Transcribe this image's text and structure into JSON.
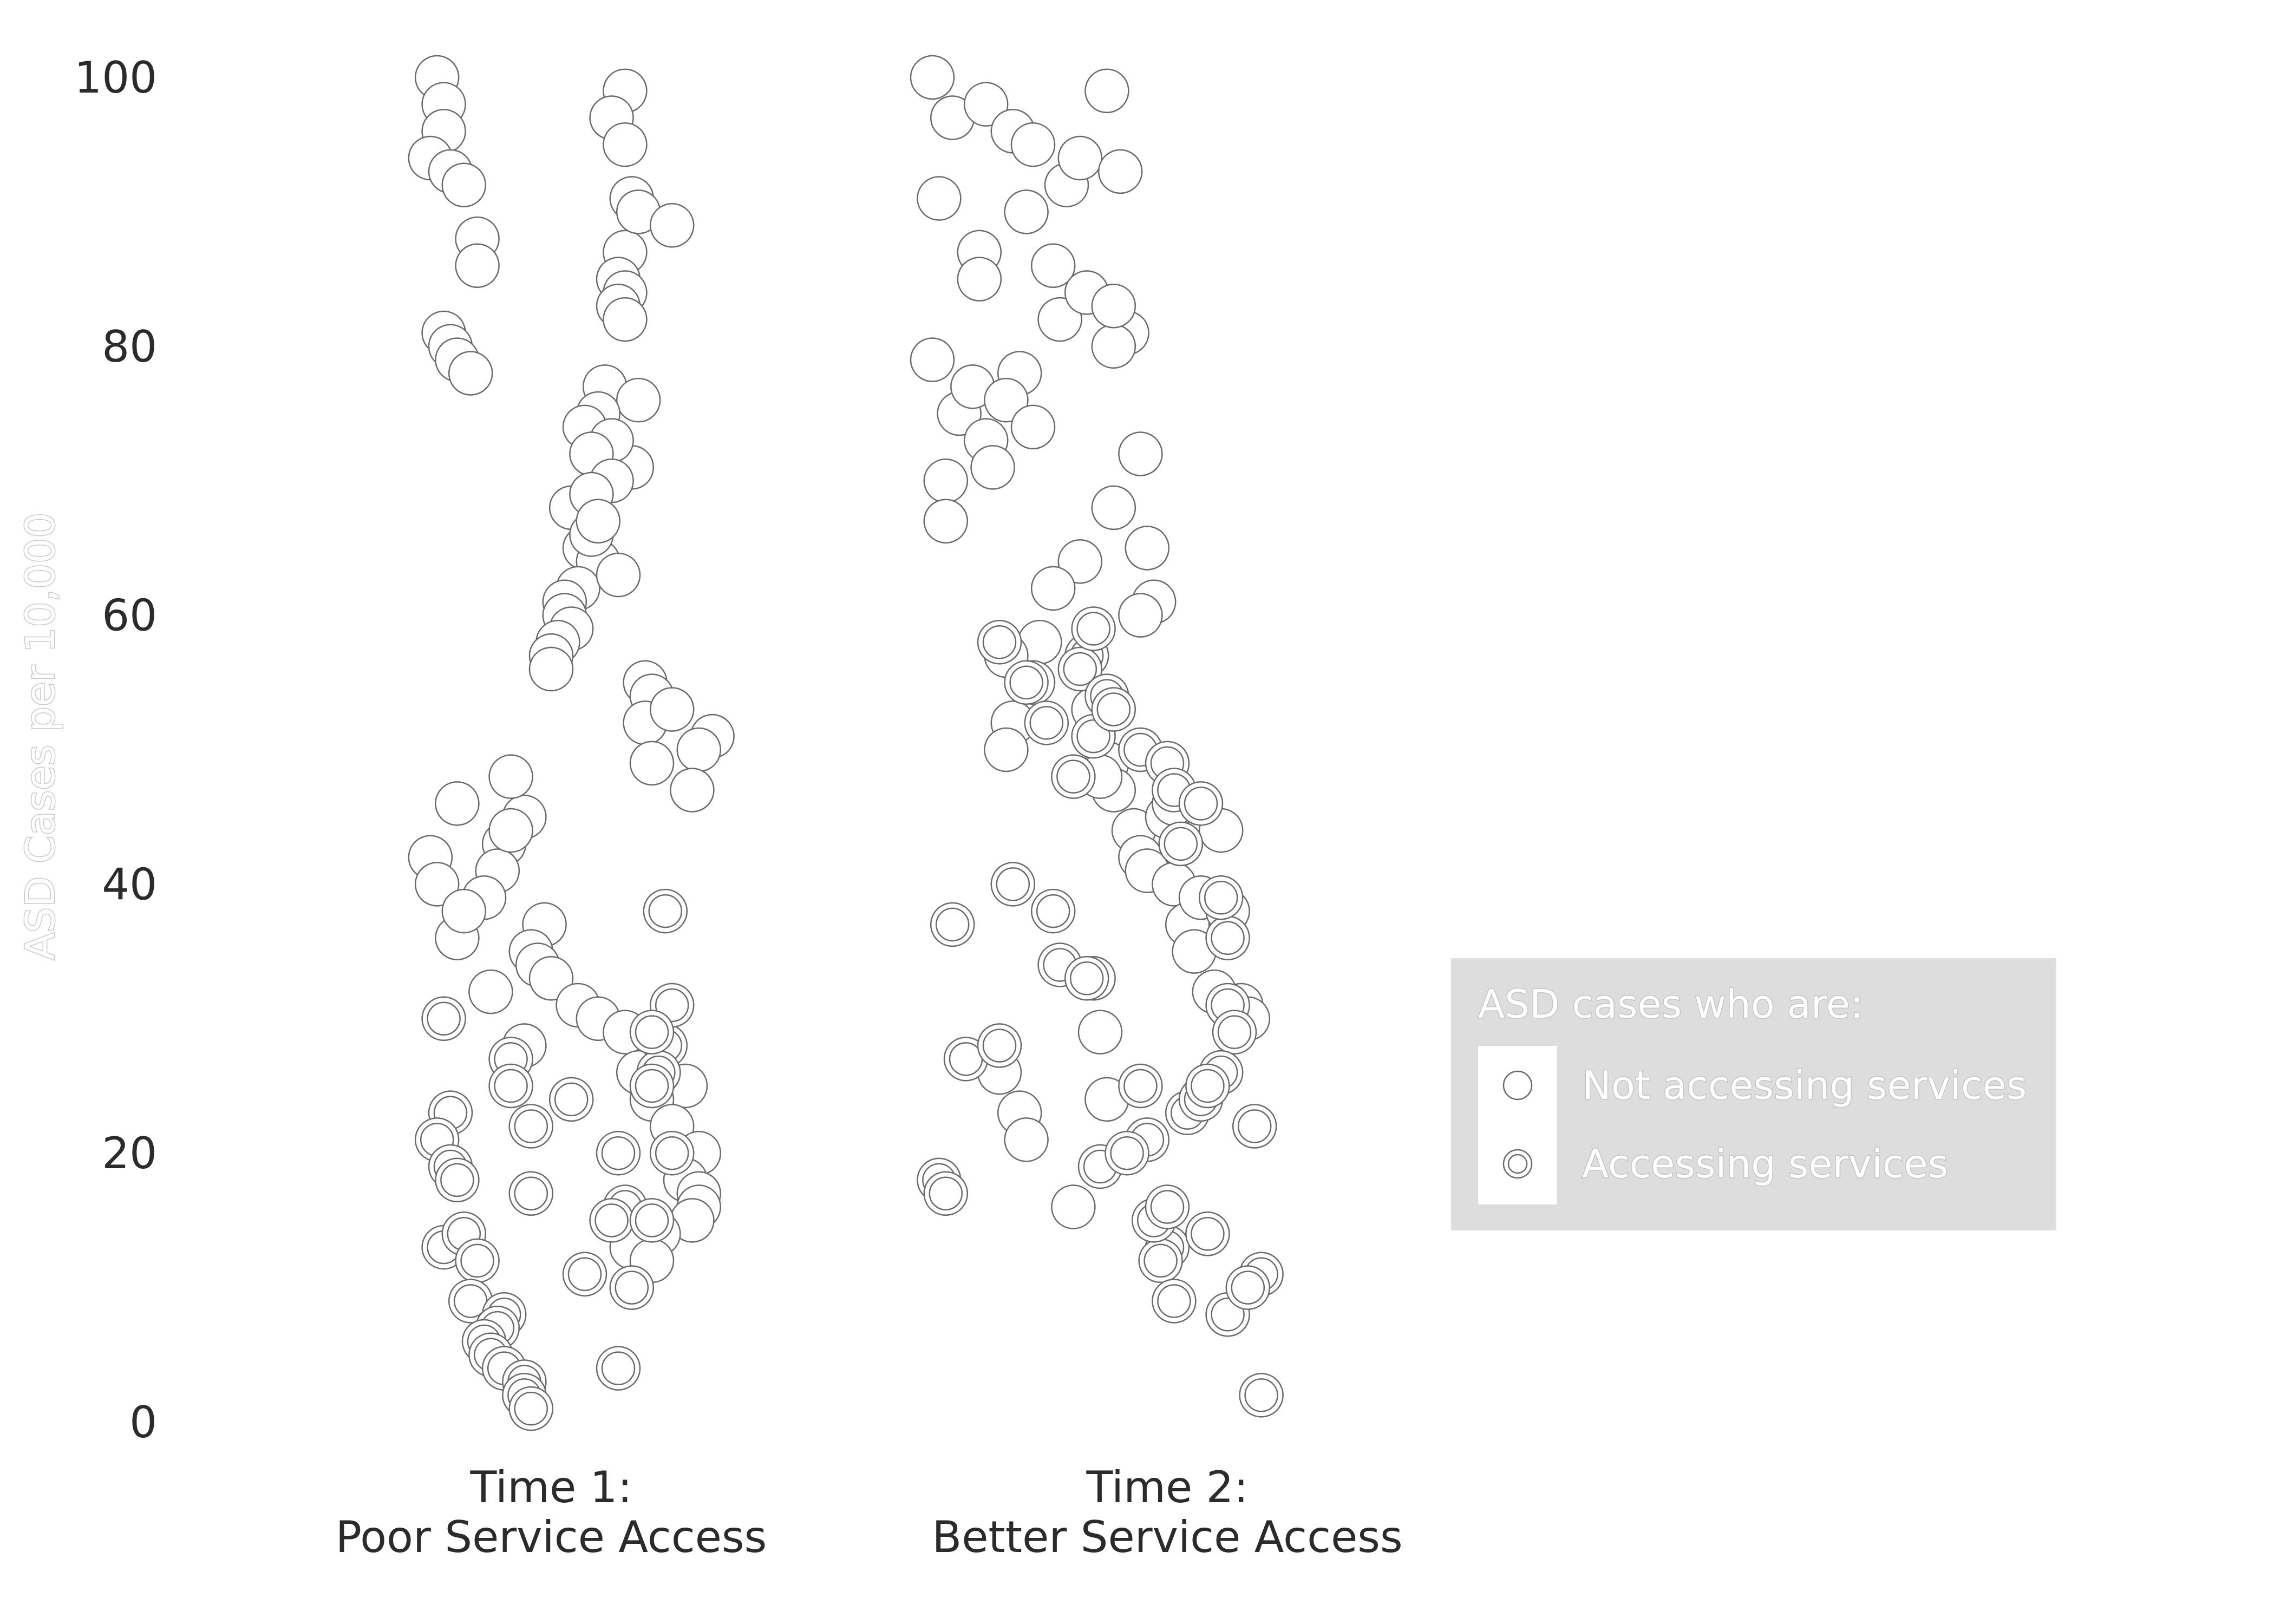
{
  "colors": {
    "background": "#ffffff",
    "point_fill": "#ffffff",
    "point_stroke": "#6a6a6a",
    "legend_background": "#dddddd",
    "legend_key_background": "#ffffff",
    "text": "#2b2b2b"
  },
  "chart_data": {
    "type": "scatter",
    "title": "",
    "xlabel": "",
    "ylabel": "ASD Cases per 10,000",
    "categories": [
      "Time 1:\nPoor Service Access",
      "Time 2:\nBetter Service Access"
    ],
    "ylim": [
      0,
      100
    ],
    "y_ticks": [
      "0",
      "20",
      "40",
      "60",
      "80",
      "100"
    ],
    "grid": false,
    "legend": {
      "title": "ASD cases who are:",
      "position": "right",
      "entries": [
        "Not accessing services",
        "Accessing services"
      ]
    },
    "series": [
      {
        "name": "Not accessing services",
        "x": [
          0.23,
          0.24,
          0.24,
          0.22,
          0.25,
          0.27,
          0.29,
          0.29,
          0.24,
          0.25,
          0.26,
          0.28,
          0.43,
          0.51,
          0.49,
          0.51,
          0.52,
          0.51,
          0.53,
          0.58,
          0.5,
          0.51,
          0.5,
          0.51,
          0.48,
          0.52,
          0.53,
          0.47,
          0.45,
          0.49,
          0.46,
          0.49,
          0.46,
          0.45,
          0.47,
          0.44,
          0.46,
          0.47,
          0.5,
          0.42,
          0.42,
          0.43,
          0.41,
          0.4,
          0.4,
          0.54,
          0.55,
          0.54,
          0.55,
          0.58,
          0.64,
          0.62,
          0.61,
          0.36,
          0.34,
          0.26,
          0.33,
          0.32,
          0.34,
          0.3,
          0.22,
          0.23,
          0.26,
          0.27,
          0.39,
          0.37,
          0.38,
          0.4,
          0.31,
          0.44,
          0.47,
          0.36,
          0.51,
          0.53,
          0.6,
          0.55,
          0.58,
          0.62,
          0.6,
          0.62,
          0.62,
          0.61,
          0.56,
          0.52,
          0.55
        ],
        "y": [
          100,
          98,
          96,
          94,
          93,
          92,
          88,
          86,
          81,
          80,
          79,
          78,
          68,
          99,
          97,
          95,
          91,
          87,
          90,
          89,
          85,
          84,
          83,
          82,
          77,
          71,
          76,
          75,
          74,
          73,
          72,
          70,
          69,
          65,
          64,
          62,
          66,
          67,
          63,
          61,
          60,
          59,
          58,
          57,
          56,
          55,
          54,
          52,
          49,
          53,
          51,
          50,
          47,
          45,
          48,
          46,
          43,
          41,
          44,
          39,
          42,
          40,
          36,
          38,
          37,
          35,
          34,
          33,
          32,
          31,
          30,
          28,
          29,
          26,
          25,
          24,
          22,
          20,
          18,
          17,
          16,
          15,
          14,
          13,
          12
        ]
      },
      {
        "name": "Accessing services",
        "x": [
          0.24,
          0.25,
          0.23,
          0.25,
          0.26,
          0.24,
          0.27,
          0.29,
          0.28,
          0.33,
          0.32,
          0.3,
          0.31,
          0.33,
          0.36,
          0.36,
          0.37,
          0.34,
          0.34,
          0.37,
          0.37,
          0.43,
          0.45,
          0.5,
          0.51,
          0.49,
          0.52,
          0.57,
          0.58,
          0.56,
          0.55,
          0.55,
          0.5,
          0.57,
          0.58,
          0.55
        ],
        "y": [
          30,
          23,
          21,
          19,
          18,
          13,
          14,
          12,
          9,
          8,
          7,
          6,
          5,
          4,
          3,
          2,
          1,
          27,
          25,
          22,
          17,
          24,
          11,
          20,
          16,
          15,
          10,
          28,
          31,
          26,
          25,
          29,
          4,
          38,
          20,
          15
        ]
      },
      {
        "name": "Not accessing services",
        "x": [
          1.05,
          1.08,
          1.06,
          1.13,
          1.17,
          1.2,
          1.12,
          1.12,
          1.05,
          1.09,
          1.07,
          1.07,
          1.11,
          1.13,
          1.14,
          1.18,
          1.16,
          1.2,
          1.19,
          1.23,
          1.24,
          1.25,
          1.27,
          1.28,
          1.31,
          1.33,
          1.34,
          1.32,
          1.32,
          1.36,
          1.37,
          1.38,
          1.36,
          1.32,
          1.27,
          1.23,
          1.21,
          1.2,
          1.17,
          1.16,
          1.16,
          1.29,
          1.31,
          1.32,
          1.35,
          1.36,
          1.37,
          1.4,
          1.41,
          1.42,
          1.41,
          1.43,
          1.44,
          1.45,
          1.49,
          1.48,
          1.47,
          1.51,
          1.52,
          1.29,
          1.3,
          1.31,
          1.15,
          1.18,
          1.19,
          1.26,
          1.3
        ],
        "y": [
          100,
          97,
          91,
          98,
          96,
          95,
          87,
          85,
          79,
          75,
          70,
          67,
          77,
          73,
          71,
          78,
          76,
          74,
          90,
          86,
          82,
          92,
          94,
          84,
          99,
          93,
          81,
          80,
          83,
          72,
          65,
          61,
          60,
          68,
          64,
          62,
          58,
          55,
          52,
          57,
          50,
          53,
          49,
          47,
          44,
          42,
          41,
          45,
          40,
          43,
          46,
          37,
          35,
          39,
          38,
          44,
          32,
          31,
          30,
          33,
          29,
          24,
          26,
          23,
          21,
          16,
          48
        ]
      },
      {
        "name": "Accessing services",
        "x": [
          1.15,
          1.19,
          1.22,
          1.28,
          1.27,
          1.29,
          1.29,
          1.26,
          1.31,
          1.32,
          1.36,
          1.4,
          1.41,
          1.42,
          1.45,
          1.49,
          1.49,
          1.48,
          1.5,
          1.53,
          1.48,
          1.37,
          1.43,
          1.45,
          1.46,
          1.46,
          1.4,
          1.39,
          1.41,
          1.49,
          1.06,
          1.07,
          1.08,
          1.1,
          1.15,
          1.17,
          1.23,
          1.24,
          1.28,
          1.3,
          1.34,
          1.36,
          1.38,
          1.4,
          1.46,
          1.54,
          1.52,
          1.54
        ],
        "y": [
          58,
          55,
          52,
          57,
          56,
          59,
          51,
          48,
          54,
          53,
          50,
          49,
          47,
          43,
          46,
          36,
          31,
          39,
          29,
          22,
          26,
          21,
          23,
          24,
          25,
          14,
          13,
          12,
          9,
          8,
          18,
          17,
          37,
          27,
          28,
          40,
          38,
          34,
          33,
          19,
          20,
          25,
          15,
          16,
          14,
          11,
          10,
          2
        ]
      }
    ]
  }
}
